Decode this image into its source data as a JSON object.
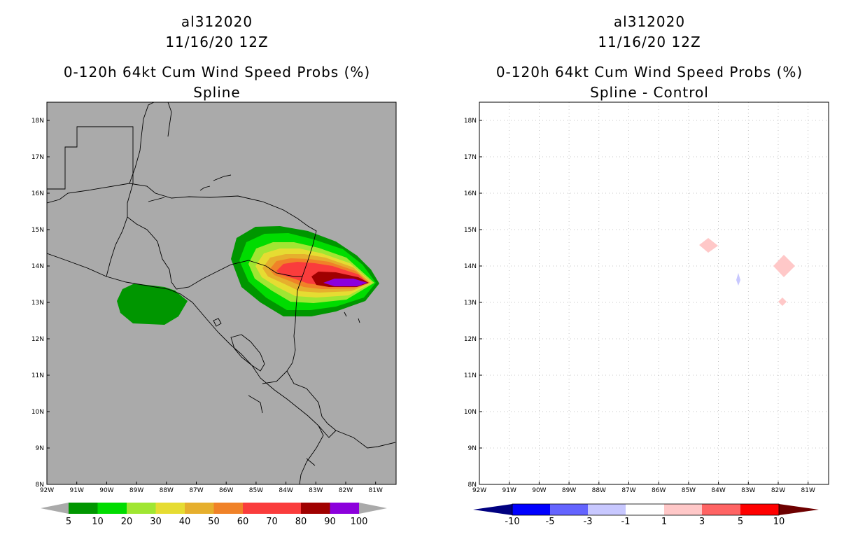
{
  "colors": {
    "land": "#aaaaaa",
    "prob": [
      "#009600",
      "#00dc00",
      "#a0e632",
      "#e6dc32",
      "#e6af2d",
      "#f08228",
      "#fa3c3c",
      "#a00000",
      "#8c00dc"
    ],
    "diff": [
      "#0000aa",
      "#0000ff",
      "#6464ff",
      "#c8c8ff",
      "#ffffff",
      "#ffc8c8",
      "#ff6464",
      "#ff0000",
      "#8b0000"
    ],
    "neg_arrow": "#000080",
    "pos_arrow": "#6e0000"
  },
  "left_panel": {
    "title_storm": "al312020",
    "title_time": "11/16/20 12Z",
    "title_product": "0-120h 64kt Cum Wind Speed Probs (%)",
    "title_sub": "Spline",
    "colorbar_labels": [
      "5",
      "10",
      "20",
      "30",
      "40",
      "50",
      "60",
      "70",
      "80",
      "90",
      "100"
    ]
  },
  "right_panel": {
    "title_storm": "al312020",
    "title_time": "11/16/20 12Z",
    "title_product": "0-120h 64kt Cum Wind Speed Probs (%)",
    "title_sub": "Spline - Control",
    "colorbar_labels": [
      "-10",
      "-5",
      "-3",
      "-1",
      "1",
      "3",
      "5",
      "10"
    ]
  },
  "lat_labels": [
    "18N",
    "17N",
    "16N",
    "15N",
    "14N",
    "13N",
    "12N",
    "11N",
    "10N",
    "9N",
    "8N"
  ],
  "lon_labels": [
    "92W",
    "91W",
    "90W",
    "89W",
    "88W",
    "87W",
    "86W",
    "85W",
    "84W",
    "83W",
    "82W",
    "81W"
  ],
  "chart_data": {
    "type": "map",
    "map_extent": {
      "lon": [
        -92,
        -80.8
      ],
      "lat": [
        8,
        18.5
      ]
    },
    "probability_swath": {
      "variable": "64kt cumulative wind speed probability (%)",
      "contour_levels": [
        5,
        10,
        20,
        30,
        40,
        50,
        60,
        70,
        80,
        90,
        100
      ],
      "max_value_location": {
        "lon": -82.3,
        "lat": 13.5
      }
    },
    "difference_regions": [
      {
        "lon": -84.5,
        "lat": 14.6,
        "class": "1 to 3"
      },
      {
        "lon": -83.4,
        "lat": 13.6,
        "class": "-3 to -1"
      },
      {
        "lon": -82.0,
        "lat": 14.0,
        "class": "1 to 3"
      },
      {
        "lon": -82.0,
        "lat": 13.0,
        "class": "1 to 3"
      }
    ]
  }
}
